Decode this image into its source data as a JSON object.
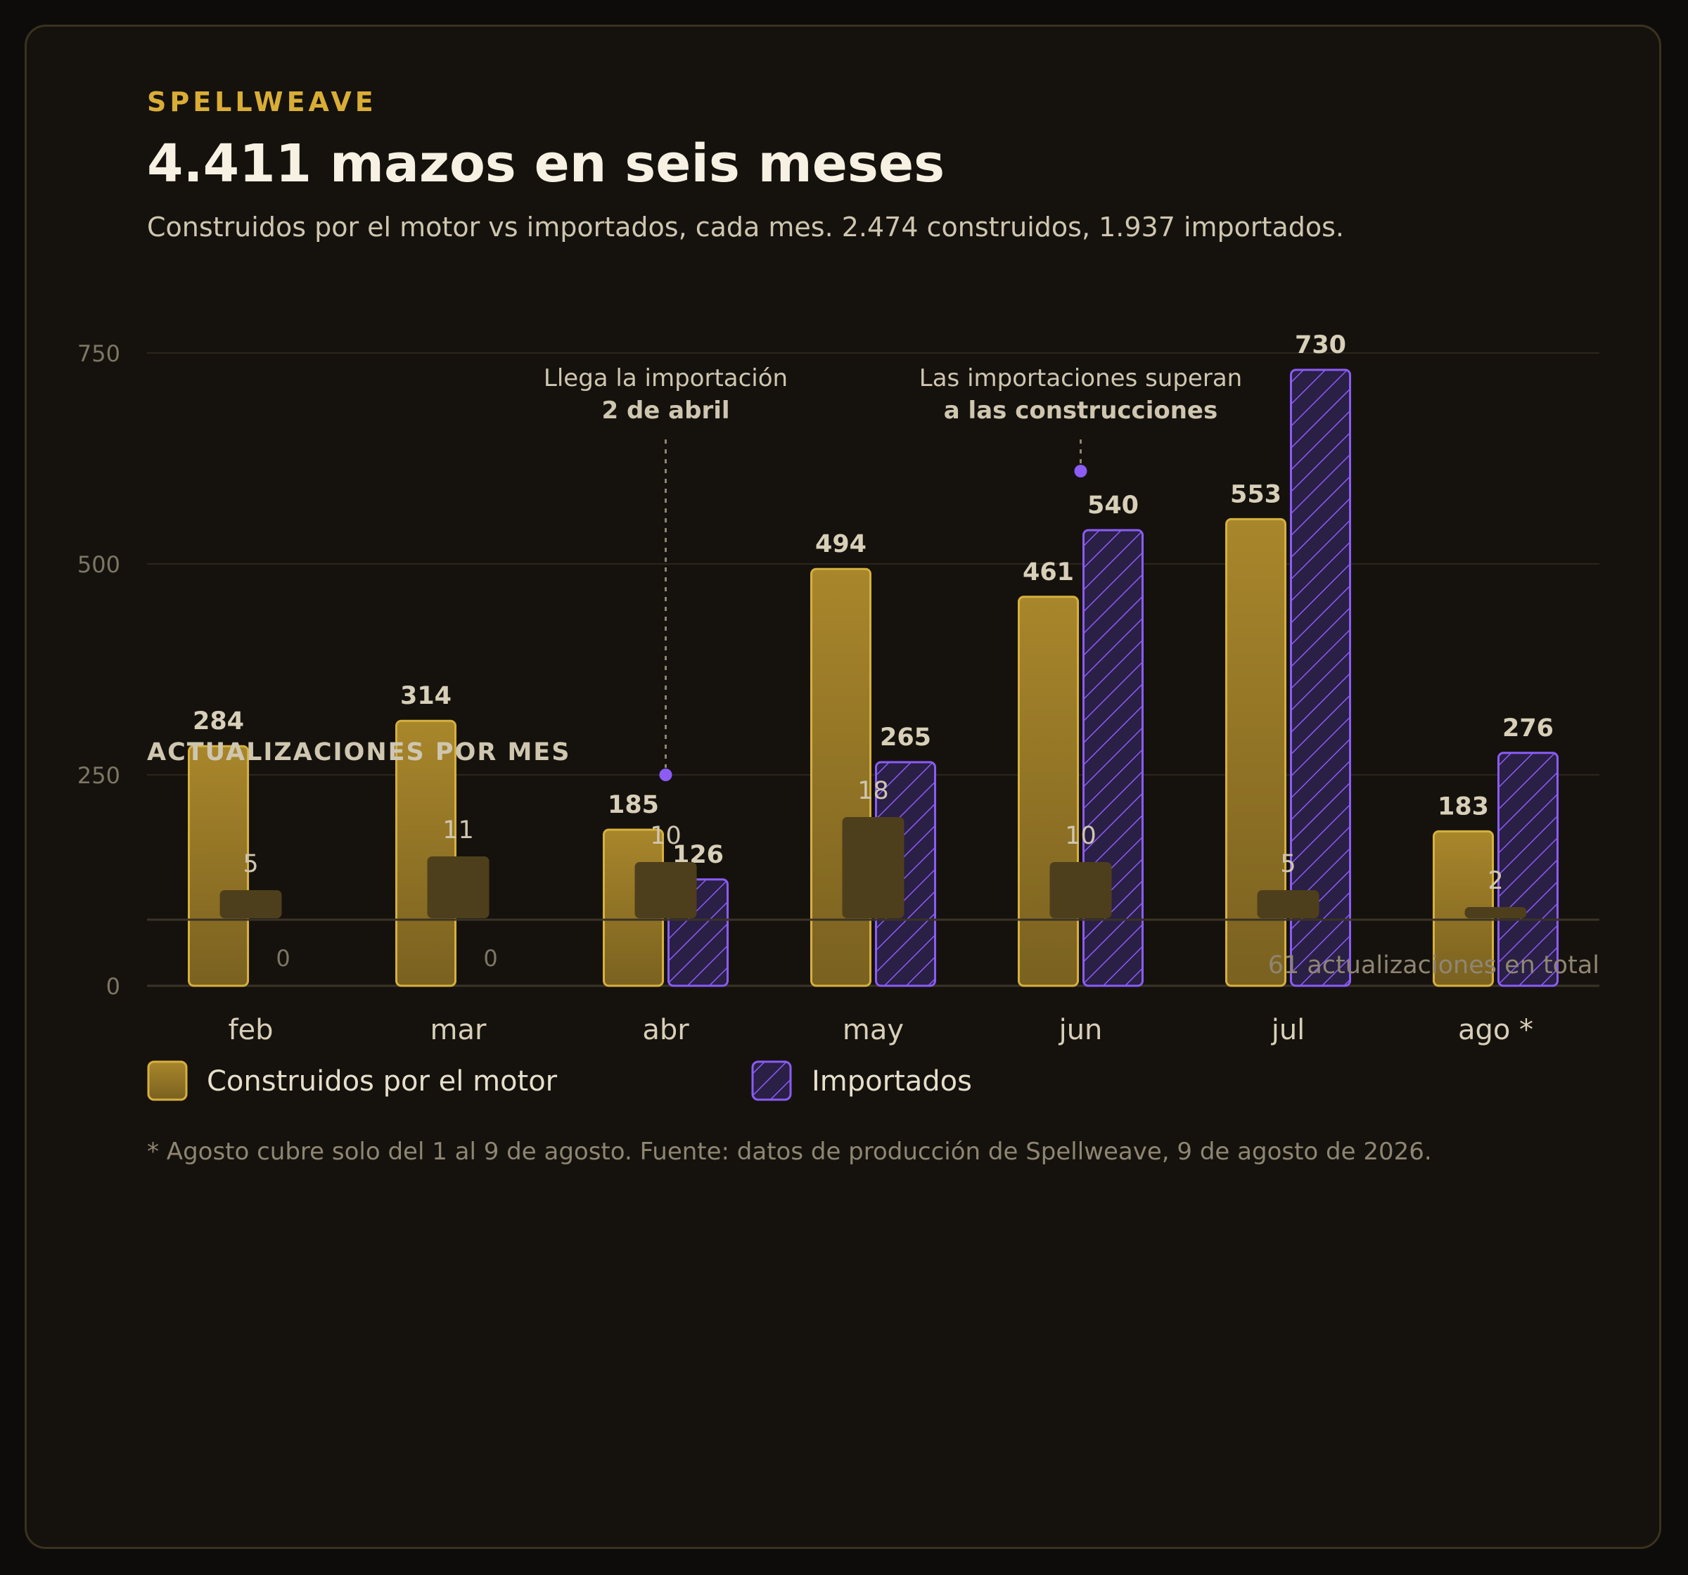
{
  "header": {
    "brand": "SPELLWEAVE",
    "title": "4.411 mazos en seis meses",
    "subtitle": "Construidos por el motor vs importados, cada mes. 2.474 construidos, 1.937 importados."
  },
  "chart_data": [
    {
      "type": "bar",
      "categories": [
        "feb",
        "mar",
        "abr",
        "may",
        "jun",
        "jul",
        "ago *"
      ],
      "series": [
        {
          "name": "Construidos por el motor",
          "values": [
            284,
            314,
            185,
            494,
            461,
            553,
            183
          ],
          "color": "#c9a227"
        },
        {
          "name": "Importados",
          "values": [
            0,
            0,
            126,
            265,
            540,
            730,
            276
          ],
          "color": "#8b5cf6"
        }
      ],
      "yticks": [
        0,
        250,
        500,
        750
      ],
      "ylim": [
        0,
        750
      ],
      "grid": true,
      "annotations": [
        {
          "line1": "Llega la importación",
          "line2": "2 de abril",
          "category": "abr",
          "value": 250
        },
        {
          "line1": "Las importaciones superan",
          "line2": "a las construcciones",
          "category": "jun",
          "value": 610
        }
      ],
      "legend": [
        {
          "label": "Construidos por el motor",
          "style": "solid-gold"
        },
        {
          "label": "Importados",
          "style": "hatched-purple"
        }
      ]
    },
    {
      "type": "bar",
      "title": "ACTUALIZACIONES POR MES",
      "categories": [
        "feb",
        "mar",
        "abr",
        "may",
        "jun",
        "jul",
        "ago *"
      ],
      "values": [
        5,
        11,
        10,
        18,
        10,
        5,
        2
      ],
      "total_label": "61 actualizaciones en total",
      "color": "#4e3f1c"
    }
  ],
  "footnote": "* Agosto cubre solo del 1 al 9 de agosto. Fuente: datos de producción de Spellweave, 9 de agosto de 2026."
}
